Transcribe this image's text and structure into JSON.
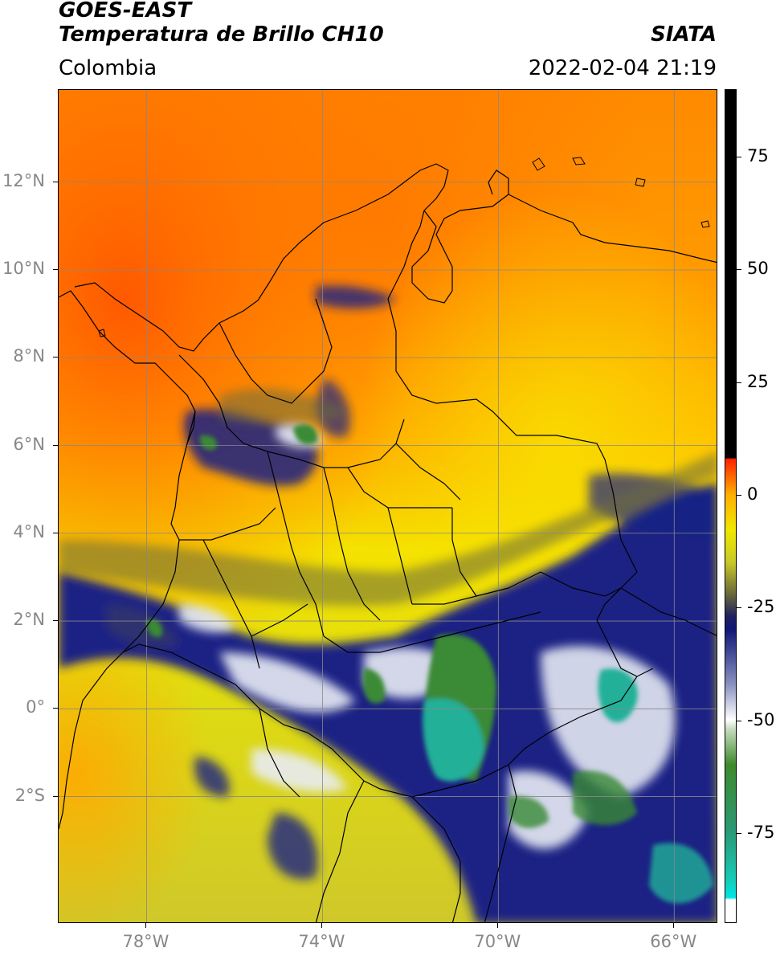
{
  "header": {
    "satellite": "GOES-EAST",
    "product": "Temperatura de Brillo CH10",
    "agency": "SIATA",
    "region": "Colombia",
    "datetime": "2022-02-04 21:19"
  },
  "map": {
    "lat_labels": [
      {
        "text": "12°N",
        "value": 12
      },
      {
        "text": "10°N",
        "value": 10
      },
      {
        "text": "8°N",
        "value": 8
      },
      {
        "text": "6°N",
        "value": 6
      },
      {
        "text": "4°N",
        "value": 4
      },
      {
        "text": "2°N",
        "value": 2
      },
      {
        "text": "0°",
        "value": 0
      },
      {
        "text": "2°S",
        "value": -2
      }
    ],
    "lon_labels": [
      {
        "text": "78°W",
        "value": -78
      },
      {
        "text": "74°W",
        "value": -74
      },
      {
        "text": "70°W",
        "value": -70
      },
      {
        "text": "66°W",
        "value": -66
      }
    ],
    "lat_range": [
      -4.9,
      14.1
    ],
    "lon_range": [
      -80.0,
      -65.0
    ]
  },
  "colorbar": {
    "range": [
      -95,
      90
    ],
    "labels": [
      {
        "text": "75",
        "value": 75
      },
      {
        "text": "50",
        "value": 50
      },
      {
        "text": "25",
        "value": 25
      },
      {
        "text": "0",
        "value": 0
      },
      {
        "text": "-25",
        "value": -25
      },
      {
        "text": "-50",
        "value": -50
      },
      {
        "text": "-75",
        "value": -75
      }
    ],
    "stops": [
      {
        "value": -95,
        "color": "#ffffff"
      },
      {
        "value": -90,
        "color": "#ffffff"
      },
      {
        "value": -89.5,
        "color": "#00e5e5"
      },
      {
        "value": -85,
        "color": "#18c8b4"
      },
      {
        "value": -75,
        "color": "#2a9a76"
      },
      {
        "value": -60,
        "color": "#3e8a2c"
      },
      {
        "value": -52,
        "color": "#c8dcc0"
      },
      {
        "value": -50,
        "color": "#ffffff"
      },
      {
        "value": -42,
        "color": "#8890c0"
      },
      {
        "value": -30,
        "color": "#101878"
      },
      {
        "value": -27,
        "color": "#202060"
      },
      {
        "value": -22,
        "color": "#6a6a3a"
      },
      {
        "value": -15,
        "color": "#c8c828"
      },
      {
        "value": -8,
        "color": "#f0e800"
      },
      {
        "value": 0,
        "color": "#ffb000"
      },
      {
        "value": 8,
        "color": "#ff2000"
      },
      {
        "value": 8.2,
        "color": "#000000"
      },
      {
        "value": 90,
        "color": "#000000"
      }
    ]
  }
}
